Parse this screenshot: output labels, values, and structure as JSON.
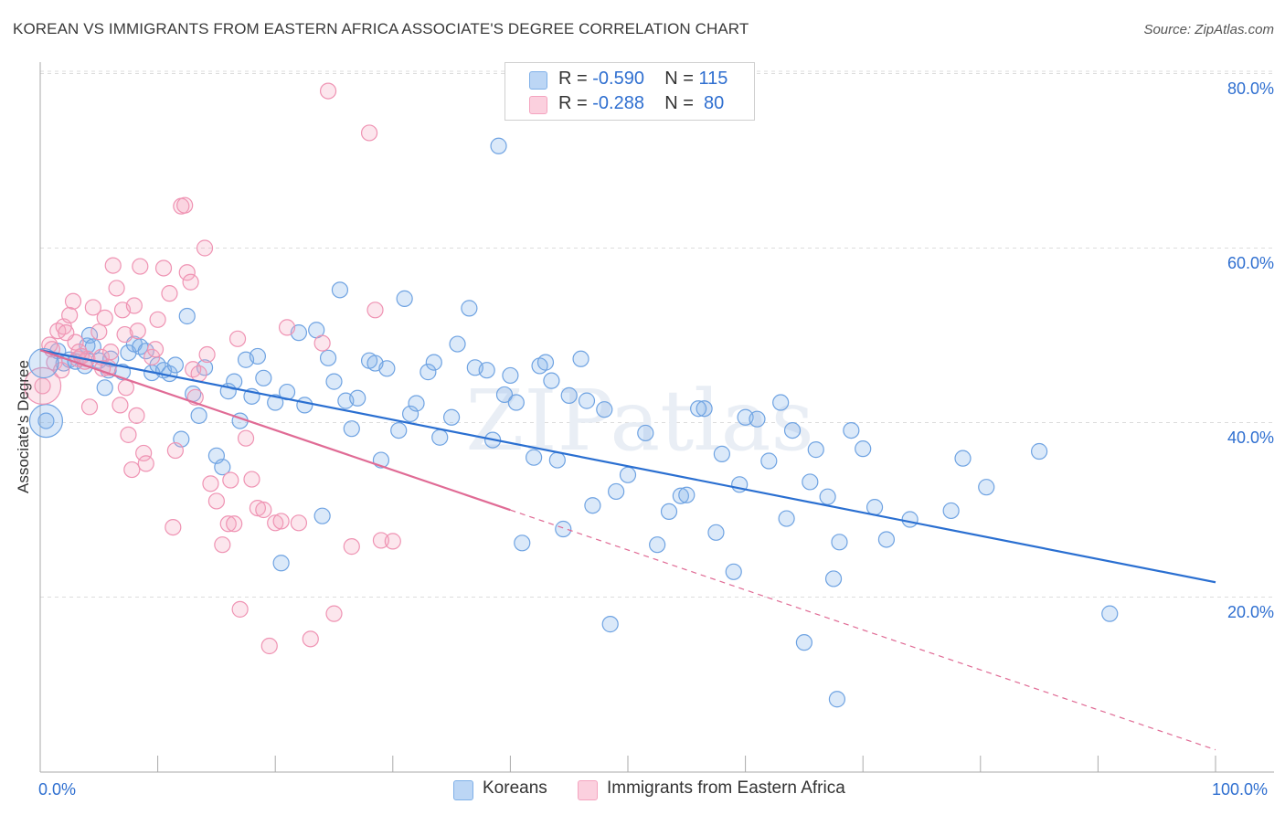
{
  "title": "KOREAN VS IMMIGRANTS FROM EASTERN AFRICA ASSOCIATE'S DEGREE CORRELATION CHART",
  "source": "Source: ZipAtlas.com",
  "watermark": "ZIPatlas",
  "legend_top": {
    "rows": [
      {
        "r_label": "R =",
        "r_value": "-0.590",
        "n_label": "N =",
        "n_value": "115"
      },
      {
        "r_label": "R =",
        "r_value": "-0.288",
        "n_label": "N =",
        "n_value": "80"
      }
    ]
  },
  "chart_data": {
    "type": "scatter",
    "title": "KOREAN VS IMMIGRANTS FROM EASTERN AFRICA ASSOCIATE'S DEGREE CORRELATION CHART",
    "xlabel": "",
    "ylabel": "Associate's Degree",
    "xlim": [
      0,
      100
    ],
    "ylim": [
      2,
      82
    ],
    "x_tick_labels": [
      "0.0%",
      "100.0%"
    ],
    "y_ticks": [
      20,
      40,
      60,
      80
    ],
    "y_tick_labels": [
      "20.0%",
      "40.0%",
      "60.0%",
      "80.0%"
    ],
    "grid": "horizontal-dashed",
    "legend_position": "bottom",
    "series": [
      {
        "name": "Koreans",
        "color": "#7fb0e8",
        "line_color": "#2a6fd1",
        "r": -0.59,
        "n": 115,
        "trend": {
          "x": [
            0,
            100
          ],
          "y": [
            48.3,
            21.7
          ],
          "dashed_from": null
        },
        "points": [
          [
            0.5,
            40.2
          ],
          [
            1.5,
            48.2
          ],
          [
            2.0,
            46.8
          ],
          [
            2.5,
            47.2
          ],
          [
            3.0,
            47.0
          ],
          [
            3.5,
            47.6
          ],
          [
            3.8,
            46.5
          ],
          [
            4.0,
            48.8
          ],
          [
            4.2,
            50.0
          ],
          [
            4.5,
            48.7
          ],
          [
            5.0,
            47.1
          ],
          [
            5.5,
            44.0
          ],
          [
            5.8,
            46.0
          ],
          [
            6.0,
            47.3
          ],
          [
            7.0,
            45.8
          ],
          [
            7.5,
            48.0
          ],
          [
            8.0,
            49.0
          ],
          [
            8.5,
            48.7
          ],
          [
            9.0,
            48.2
          ],
          [
            9.5,
            45.7
          ],
          [
            10.0,
            46.6
          ],
          [
            10.5,
            46.0
          ],
          [
            11.0,
            45.6
          ],
          [
            11.5,
            46.6
          ],
          [
            12.0,
            38.1
          ],
          [
            12.5,
            52.2
          ],
          [
            13.0,
            43.3
          ],
          [
            13.5,
            40.8
          ],
          [
            14.0,
            46.3
          ],
          [
            15.0,
            36.2
          ],
          [
            15.5,
            34.9
          ],
          [
            16.0,
            43.6
          ],
          [
            16.5,
            44.7
          ],
          [
            17.0,
            40.2
          ],
          [
            17.5,
            47.2
          ],
          [
            18.0,
            43.0
          ],
          [
            18.5,
            47.6
          ],
          [
            19.0,
            45.1
          ],
          [
            20.0,
            42.3
          ],
          [
            20.5,
            23.9
          ],
          [
            21.0,
            43.5
          ],
          [
            22.0,
            50.3
          ],
          [
            22.5,
            42.0
          ],
          [
            23.5,
            50.6
          ],
          [
            24.0,
            29.3
          ],
          [
            24.5,
            47.4
          ],
          [
            25.0,
            44.7
          ],
          [
            25.5,
            55.2
          ],
          [
            26.0,
            42.5
          ],
          [
            26.5,
            39.3
          ],
          [
            27.0,
            42.8
          ],
          [
            28.0,
            47.1
          ],
          [
            28.5,
            46.8
          ],
          [
            29.0,
            35.7
          ],
          [
            29.5,
            46.2
          ],
          [
            30.5,
            39.1
          ],
          [
            31.0,
            54.2
          ],
          [
            31.5,
            41.0
          ],
          [
            32.0,
            42.2
          ],
          [
            33.0,
            45.8
          ],
          [
            33.5,
            46.9
          ],
          [
            34.0,
            38.3
          ],
          [
            35.0,
            40.6
          ],
          [
            35.5,
            49.0
          ],
          [
            36.5,
            53.1
          ],
          [
            37.0,
            46.3
          ],
          [
            38.0,
            46.0
          ],
          [
            38.5,
            38.0
          ],
          [
            39.0,
            71.7
          ],
          [
            39.5,
            43.2
          ],
          [
            40.0,
            45.4
          ],
          [
            40.5,
            42.3
          ],
          [
            41.0,
            26.2
          ],
          [
            42.0,
            36.0
          ],
          [
            42.5,
            46.5
          ],
          [
            43.0,
            46.9
          ],
          [
            43.5,
            44.8
          ],
          [
            44.0,
            35.7
          ],
          [
            44.5,
            27.8
          ],
          [
            45.0,
            43.1
          ],
          [
            46.0,
            47.3
          ],
          [
            46.5,
            42.5
          ],
          [
            47.0,
            30.5
          ],
          [
            48.0,
            41.5
          ],
          [
            48.5,
            16.9
          ],
          [
            49.0,
            32.1
          ],
          [
            50.0,
            34.0
          ],
          [
            51.5,
            38.8
          ],
          [
            52.5,
            26.0
          ],
          [
            53.5,
            29.8
          ],
          [
            54.5,
            31.6
          ],
          [
            55.0,
            31.7
          ],
          [
            56.0,
            41.6
          ],
          [
            56.5,
            41.6
          ],
          [
            57.5,
            27.4
          ],
          [
            58.0,
            36.4
          ],
          [
            59.0,
            22.9
          ],
          [
            59.5,
            32.9
          ],
          [
            60.0,
            40.6
          ],
          [
            61.0,
            40.4
          ],
          [
            62.0,
            35.6
          ],
          [
            63.0,
            42.3
          ],
          [
            63.5,
            29.0
          ],
          [
            64.0,
            39.1
          ],
          [
            65.0,
            14.8
          ],
          [
            65.5,
            33.2
          ],
          [
            66.0,
            36.9
          ],
          [
            67.0,
            31.5
          ],
          [
            67.5,
            22.1
          ],
          [
            68.0,
            26.3
          ],
          [
            69.0,
            39.1
          ],
          [
            70.0,
            37.0
          ],
          [
            71.0,
            30.3
          ],
          [
            72.0,
            26.6
          ],
          [
            74.0,
            28.9
          ],
          [
            77.5,
            29.9
          ],
          [
            78.5,
            35.9
          ],
          [
            80.5,
            32.6
          ],
          [
            67.8,
            8.3
          ],
          [
            85.0,
            36.7
          ],
          [
            91.0,
            18.1
          ]
        ]
      },
      {
        "name": "Immigrants from Eastern Africa",
        "color": "#f4a4bf",
        "line_color": "#e06b95",
        "r": -0.288,
        "n": 80,
        "trend": {
          "x": [
            0,
            100
          ],
          "y": [
            48.3,
            2.5
          ],
          "solid_until": 40
        },
        "points": [
          [
            0.2,
            44.2
          ],
          [
            0.8,
            48.9
          ],
          [
            1.0,
            48.4
          ],
          [
            1.2,
            46.9
          ],
          [
            1.5,
            50.5
          ],
          [
            2.0,
            51.0
          ],
          [
            2.5,
            52.3
          ],
          [
            2.8,
            53.9
          ],
          [
            3.0,
            49.2
          ],
          [
            3.2,
            47.3
          ],
          [
            3.5,
            47.6
          ],
          [
            3.8,
            47.0
          ],
          [
            4.0,
            47.3
          ],
          [
            4.5,
            53.2
          ],
          [
            5.0,
            50.4
          ],
          [
            5.2,
            47.5
          ],
          [
            5.5,
            52.0
          ],
          [
            5.8,
            46.3
          ],
          [
            6.0,
            48.1
          ],
          [
            6.5,
            55.4
          ],
          [
            7.0,
            52.9
          ],
          [
            7.3,
            44.0
          ],
          [
            7.5,
            38.6
          ],
          [
            7.8,
            34.6
          ],
          [
            8.0,
            53.4
          ],
          [
            8.3,
            50.5
          ],
          [
            8.5,
            57.9
          ],
          [
            8.8,
            36.5
          ],
          [
            9.0,
            35.3
          ],
          [
            9.5,
            47.5
          ],
          [
            10.0,
            51.8
          ],
          [
            10.5,
            57.7
          ],
          [
            11.0,
            54.8
          ],
          [
            11.3,
            28.0
          ],
          [
            11.5,
            36.8
          ],
          [
            12.0,
            64.8
          ],
          [
            12.3,
            64.9
          ],
          [
            12.5,
            57.2
          ],
          [
            13.0,
            46.1
          ],
          [
            13.5,
            45.6
          ],
          [
            14.0,
            60.0
          ],
          [
            14.2,
            47.8
          ],
          [
            14.5,
            33.0
          ],
          [
            15.0,
            31.0
          ],
          [
            15.5,
            26.0
          ],
          [
            16.0,
            28.4
          ],
          [
            16.2,
            33.4
          ],
          [
            16.5,
            28.4
          ],
          [
            16.8,
            49.6
          ],
          [
            17.0,
            18.6
          ],
          [
            17.5,
            38.2
          ],
          [
            18.0,
            33.5
          ],
          [
            18.5,
            30.2
          ],
          [
            19.0,
            30.0
          ],
          [
            19.5,
            14.4
          ],
          [
            20.0,
            28.5
          ],
          [
            20.5,
            28.7
          ],
          [
            21.0,
            50.9
          ],
          [
            22.0,
            28.5
          ],
          [
            23.0,
            15.2
          ],
          [
            24.0,
            49.1
          ],
          [
            24.5,
            78.0
          ],
          [
            25.0,
            18.1
          ],
          [
            26.5,
            25.8
          ],
          [
            28.0,
            73.2
          ],
          [
            28.5,
            52.9
          ],
          [
            29.0,
            26.5
          ],
          [
            30.0,
            26.4
          ],
          [
            3.3,
            48.1
          ],
          [
            4.2,
            41.8
          ],
          [
            6.8,
            42.0
          ],
          [
            7.2,
            50.1
          ],
          [
            2.2,
            50.3
          ],
          [
            1.8,
            46.0
          ],
          [
            5.3,
            46.2
          ],
          [
            9.8,
            48.4
          ],
          [
            12.8,
            56.1
          ],
          [
            6.2,
            58.0
          ],
          [
            8.2,
            40.8
          ],
          [
            13.2,
            42.9
          ]
        ]
      }
    ]
  },
  "bottom_legend": [
    "Koreans",
    "Immigrants from Eastern Africa"
  ],
  "x_tick_left": "0.0%",
  "x_tick_right": "100.0%"
}
